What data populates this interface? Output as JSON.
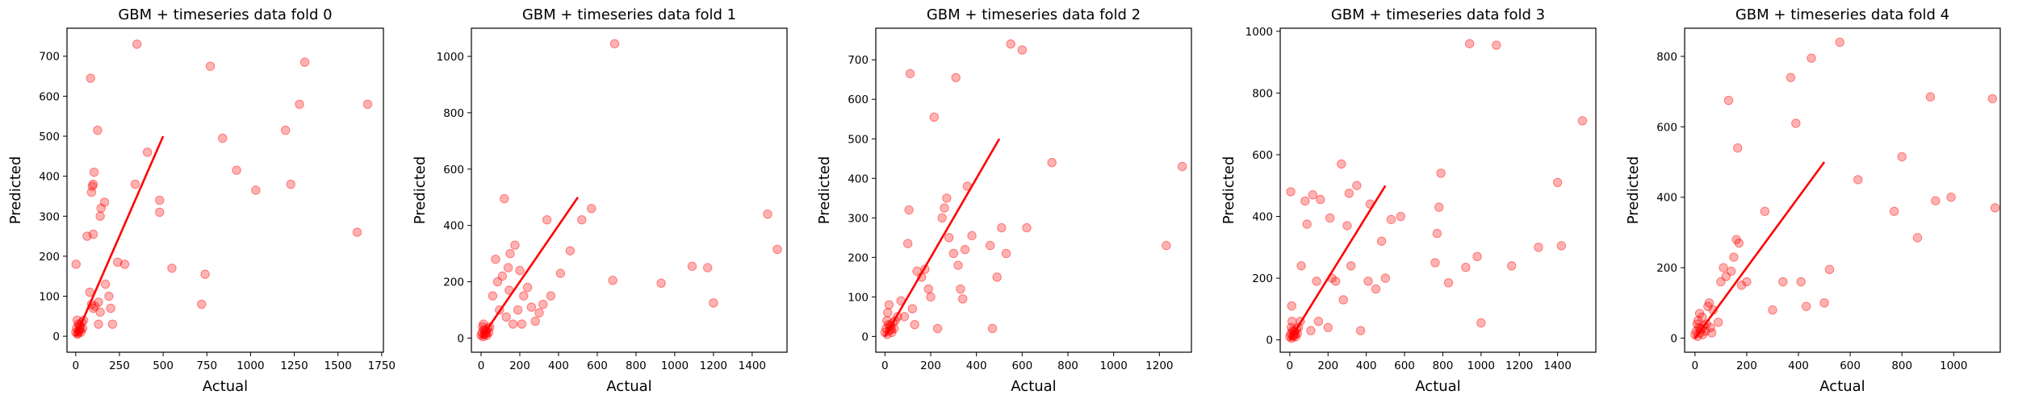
{
  "chart_data": [
    {
      "type": "scatter",
      "title": "GBM + timeseries data fold 0",
      "xlabel": "Actual",
      "ylabel": "Predicted",
      "xlim": [
        -50,
        1760
      ],
      "ylim": [
        -40,
        770
      ],
      "xticks": [
        0,
        250,
        500,
        750,
        1000,
        1250,
        1500,
        1750
      ],
      "yticks": [
        0,
        100,
        200,
        300,
        400,
        500,
        600,
        700
      ],
      "reference_line": [
        [
          0,
          0
        ],
        [
          500,
          500
        ]
      ],
      "points": [
        [
          0,
          10
        ],
        [
          5,
          20
        ],
        [
          10,
          5
        ],
        [
          15,
          30
        ],
        [
          20,
          15
        ],
        [
          8,
          40
        ],
        [
          25,
          25
        ],
        [
          30,
          10
        ],
        [
          35,
          35
        ],
        [
          40,
          20
        ],
        [
          12,
          8
        ],
        [
          18,
          12
        ],
        [
          22,
          28
        ],
        [
          45,
          40
        ],
        [
          28,
          18
        ],
        [
          2,
          180
        ],
        [
          65,
          250
        ],
        [
          85,
          645
        ],
        [
          100,
          255
        ],
        [
          90,
          360
        ],
        [
          95,
          375
        ],
        [
          100,
          380
        ],
        [
          105,
          410
        ],
        [
          125,
          515
        ],
        [
          110,
          75
        ],
        [
          100,
          70
        ],
        [
          130,
          30
        ],
        [
          130,
          85
        ],
        [
          140,
          300
        ],
        [
          145,
          320
        ],
        [
          165,
          335
        ],
        [
          170,
          130
        ],
        [
          80,
          110
        ],
        [
          90,
          80
        ],
        [
          140,
          60
        ],
        [
          190,
          100
        ],
        [
          200,
          70
        ],
        [
          210,
          30
        ],
        [
          240,
          185
        ],
        [
          280,
          180
        ],
        [
          340,
          380
        ],
        [
          350,
          730
        ],
        [
          410,
          460
        ],
        [
          480,
          340
        ],
        [
          480,
          310
        ],
        [
          550,
          170
        ],
        [
          720,
          80
        ],
        [
          740,
          155
        ],
        [
          770,
          675
        ],
        [
          840,
          495
        ],
        [
          920,
          415
        ],
        [
          1030,
          365
        ],
        [
          1200,
          515
        ],
        [
          1230,
          380
        ],
        [
          1280,
          580
        ],
        [
          1310,
          685
        ],
        [
          1610,
          260
        ],
        [
          1670,
          580
        ]
      ]
    },
    {
      "type": "scatter",
      "title": "GBM + timeseries data fold 1",
      "xlabel": "Actual",
      "ylabel": "Predicted",
      "xlim": [
        -50,
        1580
      ],
      "ylim": [
        -50,
        1100
      ],
      "xticks": [
        0,
        200,
        400,
        600,
        800,
        1000,
        1200,
        1400
      ],
      "yticks": [
        0,
        200,
        400,
        600,
        800,
        1000
      ],
      "reference_line": [
        [
          0,
          0
        ],
        [
          500,
          500
        ]
      ],
      "points": [
        [
          0,
          10
        ],
        [
          5,
          20
        ],
        [
          10,
          5
        ],
        [
          15,
          30
        ],
        [
          20,
          15
        ],
        [
          8,
          40
        ],
        [
          25,
          25
        ],
        [
          30,
          10
        ],
        [
          35,
          35
        ],
        [
          40,
          20
        ],
        [
          12,
          50
        ],
        [
          18,
          12
        ],
        [
          22,
          28
        ],
        [
          45,
          40
        ],
        [
          28,
          18
        ],
        [
          60,
          150
        ],
        [
          75,
          280
        ],
        [
          85,
          200
        ],
        [
          95,
          100
        ],
        [
          110,
          220
        ],
        [
          120,
          495
        ],
        [
          130,
          75
        ],
        [
          140,
          250
        ],
        [
          145,
          170
        ],
        [
          150,
          300
        ],
        [
          165,
          50
        ],
        [
          175,
          330
        ],
        [
          190,
          100
        ],
        [
          200,
          240
        ],
        [
          210,
          50
        ],
        [
          220,
          150
        ],
        [
          240,
          180
        ],
        [
          260,
          110
        ],
        [
          280,
          60
        ],
        [
          300,
          90
        ],
        [
          320,
          120
        ],
        [
          340,
          420
        ],
        [
          360,
          150
        ],
        [
          410,
          230
        ],
        [
          460,
          310
        ],
        [
          520,
          420
        ],
        [
          570,
          460
        ],
        [
          680,
          205
        ],
        [
          690,
          1045
        ],
        [
          930,
          195
        ],
        [
          1090,
          255
        ],
        [
          1170,
          250
        ],
        [
          1200,
          125
        ],
        [
          1480,
          440
        ],
        [
          1530,
          315
        ]
      ]
    },
    {
      "type": "scatter",
      "title": "GBM + timeseries data fold 2",
      "xlabel": "Actual",
      "ylabel": "Predicted",
      "xlim": [
        -40,
        1340
      ],
      "ylim": [
        -40,
        780
      ],
      "xticks": [
        0,
        200,
        400,
        600,
        800,
        1000,
        1200
      ],
      "yticks": [
        0,
        100,
        200,
        300,
        400,
        500,
        600,
        700
      ],
      "reference_line": [
        [
          0,
          0
        ],
        [
          500,
          500
        ]
      ],
      "points": [
        [
          0,
          10
        ],
        [
          5,
          20
        ],
        [
          10,
          5
        ],
        [
          15,
          30
        ],
        [
          20,
          15
        ],
        [
          8,
          40
        ],
        [
          25,
          25
        ],
        [
          30,
          10
        ],
        [
          35,
          35
        ],
        [
          40,
          20
        ],
        [
          12,
          60
        ],
        [
          18,
          80
        ],
        [
          22,
          28
        ],
        [
          45,
          40
        ],
        [
          28,
          18
        ],
        [
          55,
          50
        ],
        [
          70,
          90
        ],
        [
          85,
          50
        ],
        [
          100,
          235
        ],
        [
          105,
          320
        ],
        [
          110,
          665
        ],
        [
          120,
          70
        ],
        [
          130,
          30
        ],
        [
          140,
          165
        ],
        [
          160,
          150
        ],
        [
          175,
          170
        ],
        [
          190,
          120
        ],
        [
          200,
          100
        ],
        [
          215,
          555
        ],
        [
          230,
          20
        ],
        [
          250,
          300
        ],
        [
          260,
          325
        ],
        [
          270,
          350
        ],
        [
          280,
          250
        ],
        [
          300,
          210
        ],
        [
          310,
          655
        ],
        [
          320,
          180
        ],
        [
          330,
          120
        ],
        [
          340,
          95
        ],
        [
          350,
          220
        ],
        [
          360,
          380
        ],
        [
          380,
          255
        ],
        [
          460,
          230
        ],
        [
          470,
          20
        ],
        [
          490,
          150
        ],
        [
          510,
          275
        ],
        [
          530,
          210
        ],
        [
          550,
          740
        ],
        [
          600,
          725
        ],
        [
          620,
          275
        ],
        [
          730,
          440
        ],
        [
          1230,
          230
        ],
        [
          1300,
          430
        ]
      ]
    },
    {
      "type": "scatter",
      "title": "GBM + timeseries data fold 3",
      "xlabel": "Actual",
      "ylabel": "Predicted",
      "xlim": [
        -50,
        1600
      ],
      "ylim": [
        -40,
        1010
      ],
      "xticks": [
        0,
        200,
        400,
        600,
        800,
        1000,
        1200,
        1400
      ],
      "yticks": [
        0,
        200,
        400,
        600,
        800,
        1000
      ],
      "reference_line": [
        [
          0,
          0
        ],
        [
          500,
          500
        ]
      ],
      "points": [
        [
          0,
          10
        ],
        [
          5,
          20
        ],
        [
          10,
          5
        ],
        [
          15,
          30
        ],
        [
          20,
          15
        ],
        [
          8,
          40
        ],
        [
          25,
          25
        ],
        [
          30,
          10
        ],
        [
          35,
          35
        ],
        [
          40,
          20
        ],
        [
          12,
          60
        ],
        [
          18,
          12
        ],
        [
          22,
          28
        ],
        [
          45,
          40
        ],
        [
          28,
          18
        ],
        [
          5,
          480
        ],
        [
          10,
          110
        ],
        [
          55,
          60
        ],
        [
          60,
          240
        ],
        [
          80,
          450
        ],
        [
          90,
          375
        ],
        [
          110,
          30
        ],
        [
          120,
          470
        ],
        [
          140,
          190
        ],
        [
          150,
          60
        ],
        [
          160,
          455
        ],
        [
          200,
          40
        ],
        [
          210,
          395
        ],
        [
          220,
          200
        ],
        [
          240,
          190
        ],
        [
          270,
          570
        ],
        [
          280,
          130
        ],
        [
          300,
          370
        ],
        [
          310,
          475
        ],
        [
          320,
          240
        ],
        [
          350,
          500
        ],
        [
          370,
          30
        ],
        [
          410,
          190
        ],
        [
          420,
          440
        ],
        [
          450,
          165
        ],
        [
          480,
          320
        ],
        [
          500,
          200
        ],
        [
          530,
          390
        ],
        [
          580,
          400
        ],
        [
          760,
          250
        ],
        [
          770,
          345
        ],
        [
          780,
          430
        ],
        [
          790,
          540
        ],
        [
          830,
          185
        ],
        [
          920,
          235
        ],
        [
          940,
          960
        ],
        [
          980,
          270
        ],
        [
          1000,
          55
        ],
        [
          1080,
          955
        ],
        [
          1160,
          240
        ],
        [
          1300,
          300
        ],
        [
          1400,
          510
        ],
        [
          1420,
          305
        ],
        [
          1530,
          710
        ]
      ]
    },
    {
      "type": "scatter",
      "title": "GBM + timeseries data fold 4",
      "xlabel": "Actual",
      "ylabel": "Predicted",
      "xlim": [
        -40,
        1180
      ],
      "ylim": [
        -40,
        880
      ],
      "xticks": [
        0,
        200,
        400,
        600,
        800,
        1000
      ],
      "yticks": [
        0,
        200,
        400,
        600,
        800
      ],
      "reference_line": [
        [
          0,
          0
        ],
        [
          500,
          500
        ]
      ],
      "points": [
        [
          0,
          10
        ],
        [
          5,
          20
        ],
        [
          10,
          5
        ],
        [
          15,
          30
        ],
        [
          20,
          15
        ],
        [
          8,
          40
        ],
        [
          25,
          25
        ],
        [
          30,
          10
        ],
        [
          35,
          35
        ],
        [
          40,
          20
        ],
        [
          12,
          50
        ],
        [
          18,
          70
        ],
        [
          22,
          28
        ],
        [
          45,
          40
        ],
        [
          28,
          60
        ],
        [
          50,
          90
        ],
        [
          55,
          100
        ],
        [
          60,
          30
        ],
        [
          65,
          15
        ],
        [
          70,
          80
        ],
        [
          90,
          45
        ],
        [
          100,
          160
        ],
        [
          110,
          200
        ],
        [
          120,
          175
        ],
        [
          130,
          675
        ],
        [
          140,
          190
        ],
        [
          150,
          230
        ],
        [
          160,
          280
        ],
        [
          165,
          540
        ],
        [
          170,
          270
        ],
        [
          180,
          150
        ],
        [
          200,
          160
        ],
        [
          270,
          360
        ],
        [
          300,
          80
        ],
        [
          340,
          160
        ],
        [
          370,
          740
        ],
        [
          390,
          610
        ],
        [
          410,
          160
        ],
        [
          430,
          90
        ],
        [
          450,
          795
        ],
        [
          500,
          100
        ],
        [
          520,
          195
        ],
        [
          560,
          840
        ],
        [
          630,
          450
        ],
        [
          770,
          360
        ],
        [
          800,
          515
        ],
        [
          860,
          285
        ],
        [
          910,
          685
        ],
        [
          930,
          390
        ],
        [
          990,
          400
        ],
        [
          1150,
          680
        ],
        [
          1160,
          370
        ]
      ]
    }
  ]
}
